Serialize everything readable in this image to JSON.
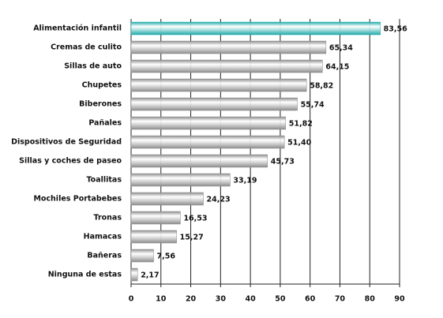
{
  "chart_data": {
    "type": "bar",
    "orientation": "horizontal",
    "categories": [
      "Alimentación infantil",
      "Cremas de culito",
      "Sillas de auto",
      "Chupetes",
      "Biberones",
      "Pañales",
      "Dispositivos de Seguridad",
      "Sillas y coches de paseo",
      "Toallitas",
      "Mochiles Portabebes",
      "Tronas",
      "Hamacas",
      "Bañeras",
      "Ninguna de estas"
    ],
    "values": [
      83.56,
      65.34,
      64.15,
      58.82,
      55.74,
      51.82,
      51.4,
      45.73,
      33.19,
      24.23,
      16.53,
      15.27,
      7.56,
      2.17
    ],
    "value_labels": [
      "83,56",
      "65,34",
      "64,15",
      "58,82",
      "55,74",
      "51,82",
      "51,40",
      "45,73",
      "33,19",
      "24,23",
      "16,53",
      "15,27",
      "7,56",
      "2,17"
    ],
    "colors": [
      "#1fa9a9",
      "#8c8c8c",
      "#8c8c8c",
      "#8c8c8c",
      "#8c8c8c",
      "#8c8c8c",
      "#8c8c8c",
      "#8c8c8c",
      "#8c8c8c",
      "#8c8c8c",
      "#8c8c8c",
      "#8c8c8c",
      "#8c8c8c",
      "#8c8c8c"
    ],
    "label_colors": [
      "#1a8f8f",
      "#111111",
      "#111111",
      "#111111",
      "#111111",
      "#111111",
      "#111111",
      "#111111",
      "#111111",
      "#111111",
      "#111111",
      "#111111",
      "#111111",
      "#111111"
    ],
    "xlim": [
      0,
      90
    ],
    "xticks": [
      0,
      10,
      20,
      30,
      40,
      50,
      60,
      70,
      80,
      90
    ],
    "grid": true
  }
}
